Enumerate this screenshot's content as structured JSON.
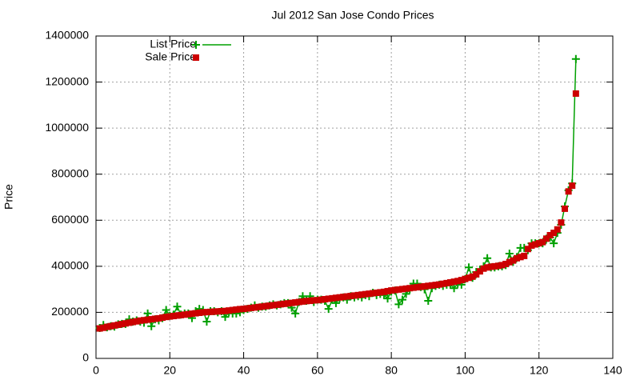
{
  "chart_data": {
    "type": "line",
    "title": "Jul 2012 San Jose Condo Prices",
    "ylabel": "Price",
    "legend": "top-left",
    "grid": true,
    "xlim": [
      0,
      140
    ],
    "xticks": [
      0,
      20,
      40,
      60,
      80,
      100,
      120,
      140
    ],
    "ylim": [
      0,
      1400000
    ],
    "yticks": [
      0,
      200000,
      400000,
      600000,
      800000,
      1000000,
      1200000,
      1400000
    ],
    "x": [
      1,
      2,
      3,
      4,
      5,
      6,
      7,
      8,
      9,
      10,
      11,
      12,
      13,
      14,
      15,
      16,
      17,
      18,
      19,
      20,
      21,
      22,
      23,
      24,
      25,
      26,
      27,
      28,
      29,
      30,
      31,
      32,
      33,
      34,
      35,
      36,
      37,
      38,
      39,
      40,
      41,
      42,
      43,
      44,
      45,
      46,
      47,
      48,
      49,
      50,
      51,
      52,
      53,
      54,
      55,
      56,
      57,
      58,
      59,
      60,
      61,
      62,
      63,
      64,
      65,
      66,
      67,
      68,
      69,
      70,
      71,
      72,
      73,
      74,
      75,
      76,
      77,
      78,
      79,
      80,
      81,
      82,
      83,
      84,
      85,
      86,
      87,
      88,
      89,
      90,
      91,
      92,
      93,
      94,
      95,
      96,
      97,
      98,
      99,
      100,
      101,
      102,
      103,
      104,
      105,
      106,
      107,
      108,
      109,
      110,
      111,
      112,
      113,
      114,
      115,
      116,
      117,
      118,
      119,
      120,
      121,
      122,
      123,
      124,
      125,
      126,
      127,
      128,
      129,
      130
    ],
    "series": [
      {
        "name": "List Price",
        "color": "#00a000",
        "marker": "plus",
        "line": true,
        "values": [
          132000,
          145000,
          135000,
          140000,
          138000,
          148000,
          150000,
          150000,
          170000,
          160000,
          165000,
          160000,
          155000,
          195000,
          140000,
          170000,
          165000,
          175000,
          210000,
          185000,
          190000,
          225000,
          190000,
          195000,
          195000,
          175000,
          205000,
          215000,
          210000,
          160000,
          205000,
          205000,
          200000,
          205000,
          180000,
          200000,
          195000,
          195000,
          200000,
          210000,
          215000,
          220000,
          230000,
          220000,
          225000,
          225000,
          230000,
          235000,
          230000,
          235000,
          240000,
          240000,
          220000,
          195000,
          245000,
          270000,
          250000,
          270000,
          245000,
          255000,
          255000,
          250000,
          215000,
          255000,
          240000,
          260000,
          265000,
          255000,
          270000,
          265000,
          270000,
          265000,
          275000,
          270000,
          285000,
          275000,
          280000,
          275000,
          260000,
          290000,
          295000,
          235000,
          255000,
          280000,
          300000,
          325000,
          325000,
          310000,
          300000,
          250000,
          305000,
          315000,
          320000,
          315000,
          320000,
          320000,
          305000,
          325000,
          320000,
          345000,
          395000,
          350000,
          375000,
          385000,
          400000,
          435000,
          395000,
          395000,
          400000,
          400000,
          405000,
          455000,
          420000,
          440000,
          480000,
          480000,
          470000,
          500000,
          500000,
          500000,
          500000,
          520000,
          525000,
          500000,
          545000,
          580000,
          660000,
          730000,
          760000,
          1300000
        ]
      },
      {
        "name": "Sale Price",
        "color": "#cc0000",
        "marker": "square",
        "line": false,
        "values": [
          130000,
          133000,
          137000,
          140000,
          143000,
          146000,
          149000,
          152000,
          155000,
          158000,
          161000,
          164000,
          166000,
          168000,
          170000,
          172000,
          174000,
          177000,
          180000,
          182000,
          184000,
          186000,
          188000,
          190000,
          192000,
          194000,
          196000,
          198000,
          200000,
          201000,
          202000,
          203000,
          204000,
          205000,
          206000,
          208000,
          210000,
          212000,
          214000,
          215000,
          217000,
          219000,
          221000,
          223000,
          225000,
          227000,
          229000,
          231000,
          233000,
          235000,
          237000,
          239000,
          241000,
          243000,
          245000,
          247000,
          249000,
          250000,
          252000,
          253000,
          255000,
          257000,
          259000,
          261000,
          263000,
          265000,
          267000,
          269000,
          271000,
          273000,
          275000,
          277000,
          279000,
          281000,
          283000,
          285000,
          287000,
          289000,
          292000,
          295000,
          297000,
          299000,
          301000,
          303000,
          305000,
          307000,
          309000,
          311000,
          313000,
          315000,
          317000,
          319000,
          321000,
          324000,
          327000,
          330000,
          333000,
          336000,
          340000,
          345000,
          350000,
          355000,
          365000,
          378000,
          390000,
          395000,
          398000,
          400000,
          402000,
          405000,
          410000,
          418000,
          425000,
          435000,
          440000,
          445000,
          475000,
          490000,
          495000,
          500000,
          505000,
          520000,
          535000,
          545000,
          560000,
          590000,
          650000,
          725000,
          750000,
          1150000
        ]
      }
    ]
  }
}
